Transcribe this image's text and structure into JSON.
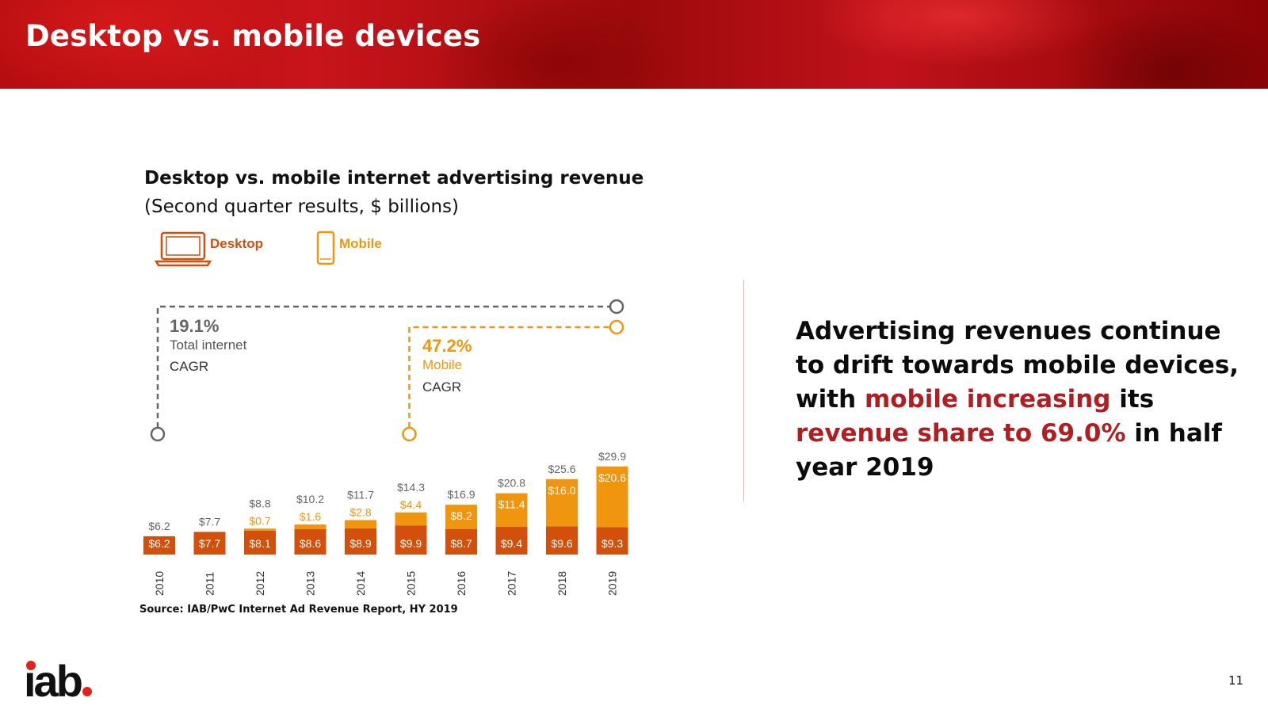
{
  "header": {
    "title": "Desktop vs. mobile devices"
  },
  "chart_data": {
    "type": "bar",
    "stacked": true,
    "title": "Desktop vs. mobile internet advertising revenue",
    "subtitle": "(Second quarter results, $ billions)",
    "categories": [
      "2010",
      "2011",
      "2012",
      "2013",
      "2014",
      "2015",
      "2016",
      "2017",
      "2018",
      "2019"
    ],
    "series": [
      {
        "name": "Desktop",
        "color": "#d24f0c",
        "values": [
          6.2,
          7.7,
          8.1,
          8.6,
          8.9,
          9.9,
          8.7,
          9.4,
          9.6,
          9.3
        ],
        "labels": [
          "$6.2",
          "$7.7",
          "$8.1",
          "$8.6",
          "$8.9",
          "$9.9",
          "$8.7",
          "$9.4",
          "$9.6",
          "$9.3"
        ]
      },
      {
        "name": "Mobile",
        "color": "#f0960e",
        "values": [
          null,
          null,
          0.7,
          1.6,
          2.8,
          4.4,
          8.2,
          11.4,
          16.0,
          20.6
        ],
        "labels": [
          "",
          "",
          "$0.7",
          "$1.6",
          "$2.8",
          "$4.4",
          "$8.2",
          "$11.4",
          "$16.0",
          "$20.6"
        ]
      }
    ],
    "totals": [
      6.2,
      7.7,
      8.8,
      10.2,
      11.7,
      14.3,
      16.9,
      20.8,
      25.6,
      29.9
    ],
    "total_labels": [
      "$6.2",
      "$7.7",
      "$8.8",
      "$10.2",
      "$11.7",
      "$14.3",
      "$16.9",
      "$20.8",
      "$25.6",
      "$29.9"
    ],
    "legend": {
      "desktop": "Desktop",
      "mobile": "Mobile",
      "placement": "top-left",
      "desktop_icon": "laptop-icon",
      "mobile_icon": "phone-icon"
    },
    "annotations": {
      "total_cagr": {
        "value": "19.1%",
        "line1": "Total internet",
        "line2": "CAGR",
        "from": "2010",
        "to": "2019"
      },
      "mobile_cagr": {
        "value": "47.2%",
        "line1": "Mobile",
        "line2": "CAGR",
        "from": "2015",
        "to": "2019"
      }
    },
    "ylim": [
      0,
      30
    ],
    "grid": false
  },
  "source": "Source: IAB/PwC Internet Ad Revenue Report, HY 2019",
  "takeaway": {
    "part1": "Advertising revenues continue to drift towards mobile devices, with ",
    "hl1": "mobile increasing",
    "part2": " its ",
    "hl2": "revenue share to 69.0%",
    "part3": " in half year 2019"
  },
  "footer": {
    "logo_text": "iab",
    "page_number": "11"
  },
  "colors": {
    "brand_red": "#c8141a",
    "desktop": "#d24f0c",
    "mobile": "#f0960e",
    "highlight": "#b11e22",
    "cagr_total": "#666666",
    "cagr_mobile": "#f0960e"
  }
}
